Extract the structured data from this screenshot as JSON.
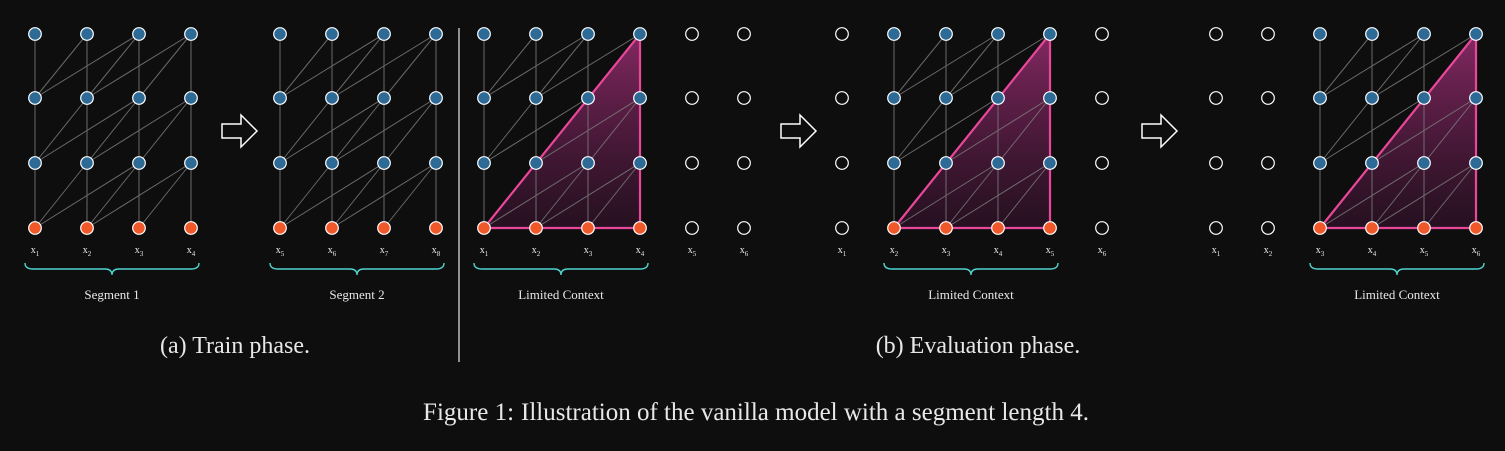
{
  "colors": {
    "background": "#0e0e0e",
    "hidden_node": "#2d6a96",
    "input_node": "#f0582a",
    "node_stroke": "#ffffff",
    "edge": "#7a7a7a",
    "context_outline": "#e8479a",
    "context_fill": "#7a1f58",
    "brace": "#4fd3cf",
    "text": "#e8e8e8"
  },
  "panels": [
    {
      "labels": [
        "x1",
        "x2",
        "x3",
        "x4"
      ],
      "active": [
        true,
        true,
        true,
        true
      ],
      "brace_label": "Segment 1",
      "highlight": false
    },
    {
      "labels": [
        "x5",
        "x6",
        "x7",
        "x8"
      ],
      "active": [
        true,
        true,
        true,
        true
      ],
      "brace_label": "Segment 2",
      "highlight": false
    },
    {
      "labels": [
        "x1",
        "x2",
        "x3",
        "x4",
        "x5",
        "x6"
      ],
      "active": [
        true,
        true,
        true,
        true,
        false,
        false
      ],
      "brace_label": "Limited Context",
      "highlight": true
    },
    {
      "labels": [
        "x1",
        "x2",
        "x3",
        "x4",
        "x5",
        "x6"
      ],
      "active": [
        false,
        true,
        true,
        true,
        true,
        false
      ],
      "brace_label": "Limited Context",
      "highlight": true
    },
    {
      "labels": [
        "x1",
        "x2",
        "x3",
        "x4",
        "x5",
        "x6"
      ],
      "active": [
        false,
        false,
        true,
        true,
        true,
        true
      ],
      "brace_label": "Limited Context",
      "highlight": true
    }
  ],
  "arrow_icon": "right-arrow-icon",
  "captions": {
    "train": "(a) Train phase.",
    "eval": "(b) Evaluation phase.",
    "figure_prefix": "Figure 1:",
    "figure_text": "Illustration of the vanilla model with a segment length 4."
  }
}
